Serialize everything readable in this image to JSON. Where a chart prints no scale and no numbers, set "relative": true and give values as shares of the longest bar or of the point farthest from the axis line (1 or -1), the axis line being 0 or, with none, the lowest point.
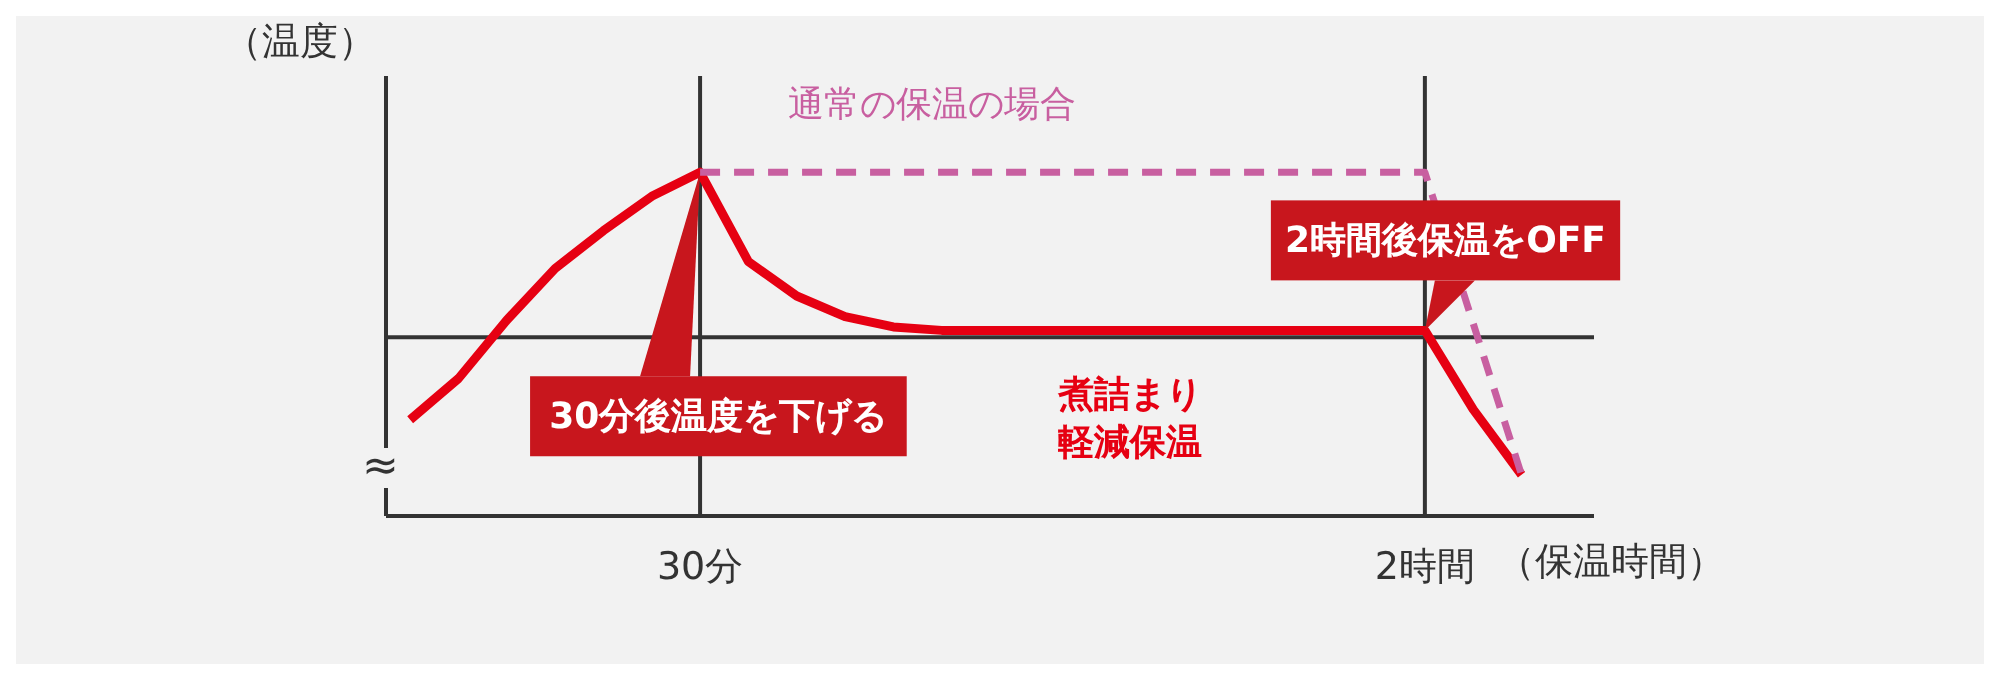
{
  "chart_data": {
    "type": "line",
    "relative": true,
    "ylabel": "（温度）",
    "xlabel": "（保温時間）",
    "categories": [
      null,
      null,
      null,
      null,
      null,
      null,
      "30分",
      null,
      null,
      null,
      null,
      null,
      null,
      null,
      null,
      null,
      null,
      null,
      null,
      null,
      null,
      "2時間",
      null,
      null,
      null
    ],
    "series": [
      {
        "name": "煮詰まり軽減保温",
        "color": "#e60012",
        "line_style": "solid",
        "values": [
          0.28,
          0.4,
          0.57,
          0.72,
          0.83,
          0.93,
          1.0,
          0.74,
          0.64,
          0.58,
          0.55,
          0.54,
          0.54,
          0.54,
          0.54,
          0.54,
          0.54,
          0.54,
          0.54,
          0.54,
          0.54,
          0.54,
          0.31,
          0.12,
          null
        ]
      },
      {
        "name": "通常の保温の場合",
        "color": "#c85fa0",
        "line_style": "dashed",
        "values": [
          null,
          null,
          null,
          null,
          null,
          null,
          1.0,
          1.0,
          1.0,
          1.0,
          1.0,
          1.0,
          1.0,
          1.0,
          1.0,
          1.0,
          1.0,
          1.0,
          1.0,
          1.0,
          1.0,
          1.0,
          0.56,
          0.12,
          null
        ]
      }
    ],
    "ref_lines": [
      {
        "axis": "y",
        "value": 0.52,
        "color": "#333333"
      },
      {
        "axis": "x",
        "value": "30分",
        "color": "#333333"
      },
      {
        "axis": "x",
        "value": "2時間",
        "color": "#333333"
      }
    ],
    "annotations": [
      {
        "text": "30分後温度を下げる",
        "x": "30分",
        "y": 1.0
      },
      {
        "text": "2時間後保温をOFF",
        "x": "2時間",
        "y": 0.54
      },
      "≈"
    ],
    "marker": "none",
    "grid": false
  }
}
